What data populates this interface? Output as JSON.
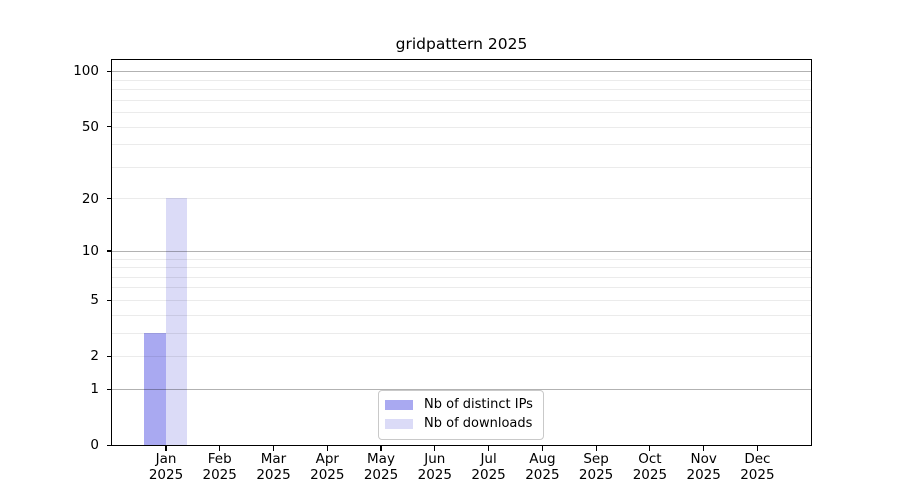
{
  "title": "gridpattern 2025",
  "chart_data": {
    "type": "bar",
    "title": "gridpattern 2025",
    "categories": [
      "Jan 2025",
      "Feb 2025",
      "Mar 2025",
      "Apr 2025",
      "May 2025",
      "Jun 2025",
      "Jul 2025",
      "Aug 2025",
      "Sep 2025",
      "Oct 2025",
      "Nov 2025",
      "Dec 2025"
    ],
    "series": [
      {
        "name": "Nb of distinct IPs",
        "color": "#a9a9f1",
        "values": [
          3,
          0,
          0,
          0,
          0,
          0,
          0,
          0,
          0,
          0,
          0,
          0
        ]
      },
      {
        "name": "Nb of downloads",
        "color": "#dbdbf7",
        "values": [
          20,
          0,
          0,
          0,
          0,
          0,
          0,
          0,
          0,
          0,
          0,
          0
        ]
      }
    ],
    "xlabel": "",
    "ylabel": "",
    "y_ticks": [
      0,
      1,
      2,
      5,
      10,
      20,
      50,
      100
    ],
    "y_scale": "log1p",
    "ylim": [
      0,
      115
    ],
    "grid": {
      "orientation": "horizontal",
      "major_at": [
        1,
        10,
        100
      ],
      "major_color": "rgba(0,0,0,0.30)",
      "minor_color": "rgba(0,0,0,0.08)",
      "drawn_over_bars": true
    },
    "legend": {
      "position": "lower center",
      "items": [
        "Nb of distinct IPs",
        "Nb of downloads"
      ]
    }
  }
}
